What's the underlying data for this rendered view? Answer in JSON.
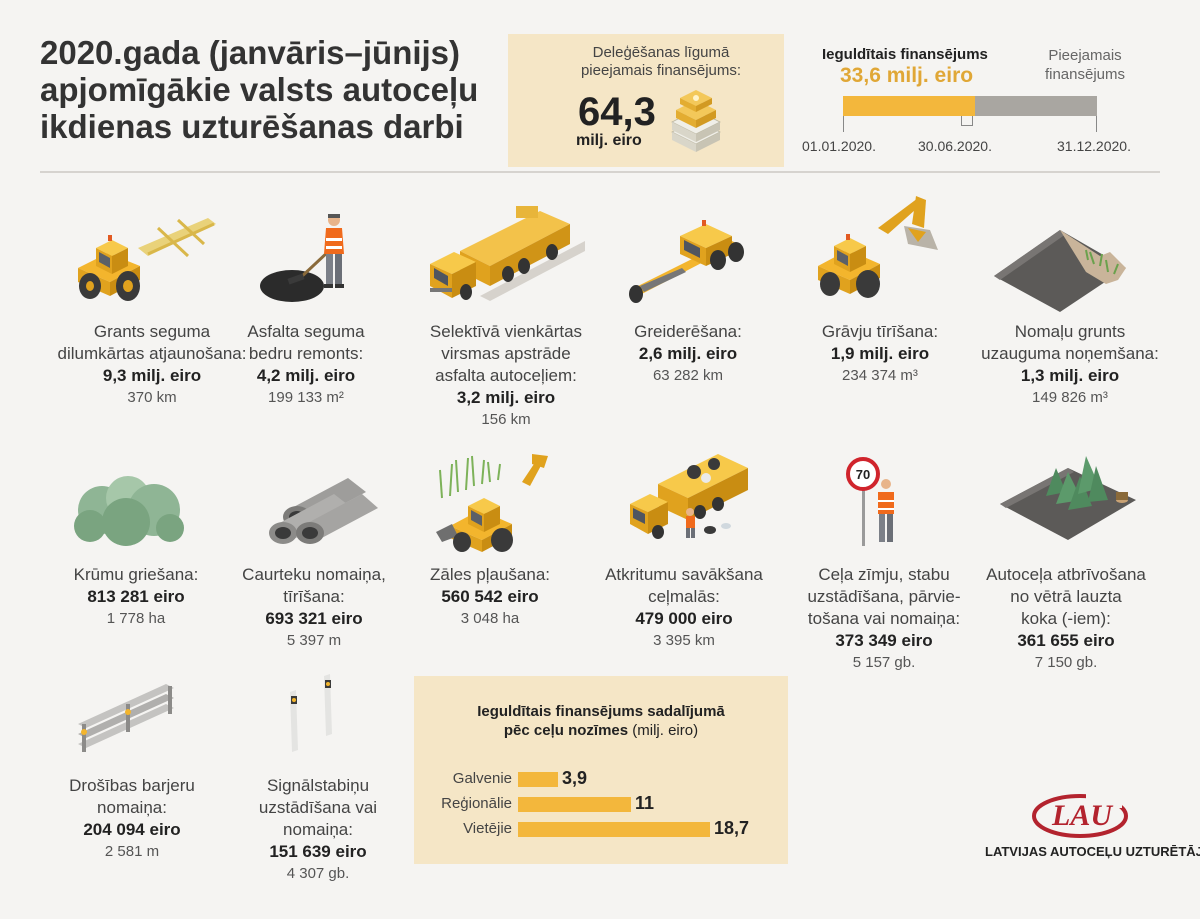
{
  "title": {
    "line1": "2020.gada (janvāris–jūnijs)",
    "line2": "apjomīgākie valsts autoceļu",
    "line3": "ikdienas uzturēšanas darbi"
  },
  "budget": {
    "label_line1": "Deleģēšanas līgumā",
    "label_line2": "pieejamais finansējums:",
    "value": "64,3",
    "unit": "milj. eiro",
    "icon": "money-stack-icon"
  },
  "timeline": {
    "invested_label": "Ieguldītais finansējums",
    "invested_value": "33,6 milj. eiro",
    "available_label_line1": "Pieejamais",
    "available_label_line2": "finansējums",
    "invested_fraction": 0.52,
    "dates": [
      "01.01.2020.",
      "30.06.2020.",
      "31.12.2020."
    ],
    "colors": {
      "invested": "#f3b73c",
      "available": "#a9a6a1"
    }
  },
  "works": [
    {
      "icon": "gravel-tractor-icon",
      "lines": [
        "Grants seguma",
        "dilumkārtas atjaunošana:"
      ],
      "amount": "9,3 milj. eiro",
      "qty": "370 km"
    },
    {
      "icon": "asphalt-worker-icon",
      "lines": [
        "Asfalta seguma",
        "bedru remonts:"
      ],
      "amount": "4,2 milj. eiro",
      "qty": "199 133 m²"
    },
    {
      "icon": "tanker-truck-icon",
      "lines": [
        "Selektīvā vienkārtas",
        "virsmas apstrāde",
        "asfalta autoceļiem:"
      ],
      "amount": "3,2 milj. eiro",
      "qty": "156 km"
    },
    {
      "icon": "grader-icon",
      "lines": [
        "Greiderēšana:"
      ],
      "amount": "2,6 milj. eiro",
      "qty": "63 282 km"
    },
    {
      "icon": "excavator-icon",
      "lines": [
        "Grāvju tīrīšana:"
      ],
      "amount": "1,9 milj. eiro",
      "qty": "234 374 m³"
    },
    {
      "icon": "soil-layer-icon",
      "lines": [
        "Nomaļu grunts",
        "uzauguma noņemšana:"
      ],
      "amount": "1,3 milj. eiro",
      "qty": "149 826 m³"
    },
    {
      "icon": "bushes-icon",
      "lines": [
        "Krūmu griešana:"
      ],
      "amount": "813 281 eiro",
      "qty": "1 778 ha"
    },
    {
      "icon": "pipes-icon",
      "lines": [
        "Caurteku nomaiņa,",
        "tīrīšana:"
      ],
      "amount": "693 321 eiro",
      "qty": "5 397 m"
    },
    {
      "icon": "mower-tractor-icon",
      "lines": [
        "Zāles pļaušana:"
      ],
      "amount": "560 542 eiro",
      "qty": "3 048 ha"
    },
    {
      "icon": "garbage-truck-icon",
      "lines": [
        "Atkritumu savākšana",
        "ceļmalās:"
      ],
      "amount": "479 000 eiro",
      "qty": "3 395 km"
    },
    {
      "icon": "road-sign-worker-icon",
      "lines": [
        "Ceļa zīmju, stabu",
        "uzstādīšana, pārvie-",
        "tošana vai nomaiņa:"
      ],
      "amount": "373 349 eiro",
      "qty": "5 157 gb.",
      "sign_text": "70"
    },
    {
      "icon": "fallen-tree-icon",
      "lines": [
        "Autoceļa atbrīvošana",
        "no vētrā lauzta",
        "koka (-iem):"
      ],
      "amount": "361 655 eiro",
      "qty": "7 150 gb."
    },
    {
      "icon": "guardrail-icon",
      "lines": [
        "Drošības barjeru",
        "nomaiņa:"
      ],
      "amount": "204 094 eiro",
      "qty": "2 581 m"
    },
    {
      "icon": "delineator-posts-icon",
      "lines": [
        "Signālstabiņu",
        "uzstādīšana vai",
        "nomaiņa:"
      ],
      "amount": "151 639 eiro",
      "qty": "4 307 gb."
    }
  ],
  "by_road_type": {
    "title_line1": "Ieguldītais finansējums sadalījumā",
    "title_line2": "pēc ceļu nozīmes",
    "unit": "(milj. eiro)",
    "rows": [
      {
        "label": "Galvenie",
        "value": 3.9,
        "value_text": "3,9"
      },
      {
        "label": "Reģionālie",
        "value": 11,
        "value_text": "11"
      },
      {
        "label": "Vietējie",
        "value": 18.7,
        "value_text": "18,7"
      }
    ],
    "bar_color": "#f3b73c"
  },
  "logo": {
    "mark": "LAU",
    "name": "LATVIJAS AUTOCEĻU UZTURĒTĀJS",
    "color": "#b3232e"
  }
}
